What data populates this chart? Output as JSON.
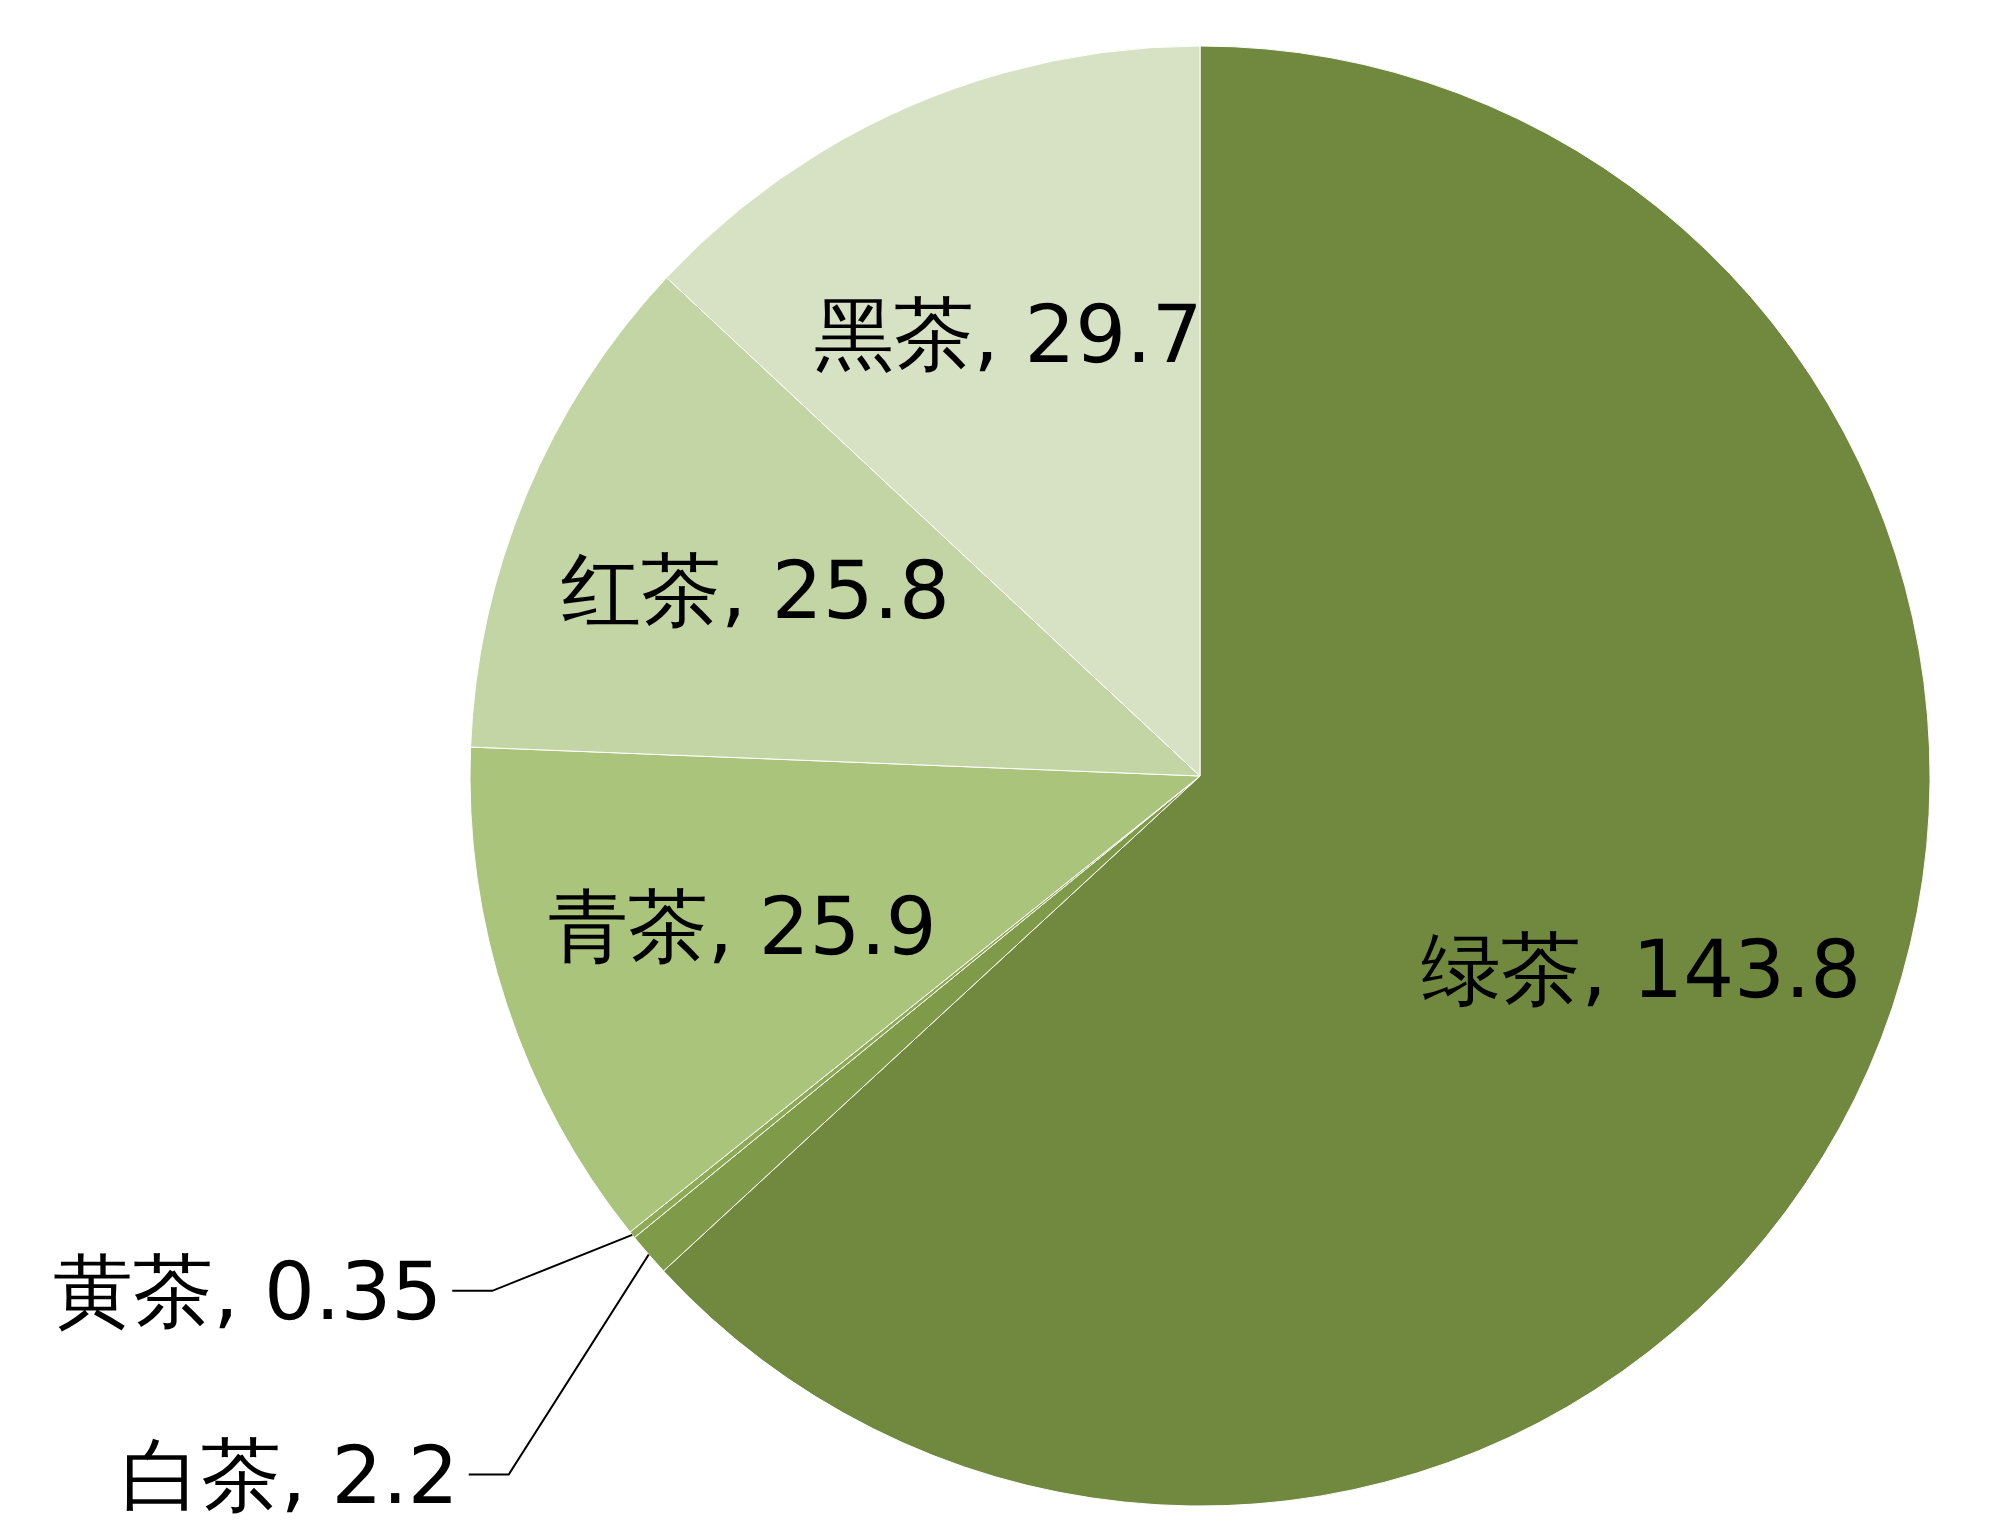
{
  "chart_data": {
    "type": "pie",
    "categories": [
      "绿茶",
      "白茶",
      "黄茶",
      "青茶",
      "红茶",
      "黑茶"
    ],
    "values": [
      143.8,
      2.2,
      0.35,
      25.9,
      25.8,
      29.7
    ],
    "value_labels": [
      ", 143.8",
      ", 2.2",
      ", 0.35",
      ", 25.9",
      ", 25.8",
      ", 29.7"
    ],
    "colors": [
      "#71893f",
      "#7f9a48",
      "#8daa55",
      "#aac47c",
      "#c3d5a4",
      "#d7e2c5"
    ]
  }
}
